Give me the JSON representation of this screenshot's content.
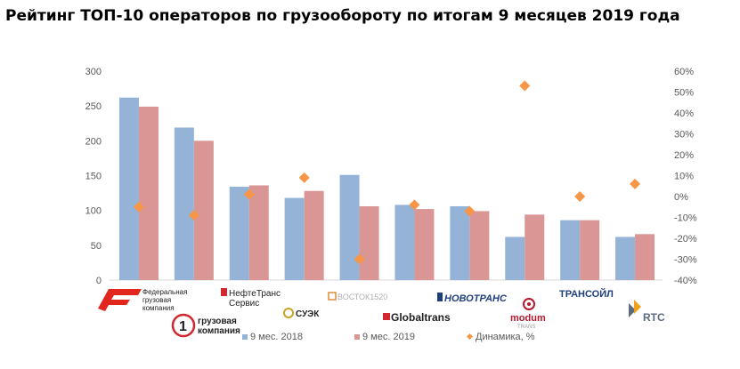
{
  "chart_data": {
    "type": "bar",
    "title": "Рейтинг ТОП-10 операторов по грузообороту по итогам 9 месяцев 2019 года",
    "categories": [
      "ФГК",
      "НефтеТрансСервис",
      "СУЭК",
      "ВОСТОК1520",
      "Первая грузовая компания",
      "Globaltrans",
      "Новотранс",
      "Модум-Транс",
      "Трансойл",
      "RTC"
    ],
    "series": [
      {
        "name": "9 мес. 2018",
        "axis": "left",
        "kind": "bar",
        "color": "#95b3d7",
        "values": [
          262,
          219,
          134,
          118,
          151,
          108,
          106,
          62,
          86,
          62
        ]
      },
      {
        "name": "9 мес. 2019",
        "axis": "left",
        "kind": "bar",
        "color": "#d99694",
        "values": [
          249,
          200,
          136,
          128,
          106,
          102,
          99,
          94,
          86,
          66
        ]
      },
      {
        "name": "Динамика, %",
        "axis": "right",
        "kind": "marker",
        "color": "#f79646",
        "values": [
          -5,
          -9,
          1,
          9,
          -30,
          -4,
          -7,
          53,
          0,
          6
        ]
      }
    ],
    "ylim_left": [
      0,
      300
    ],
    "yticks_left": [
      "0",
      "50",
      "100",
      "150",
      "200",
      "250",
      "300"
    ],
    "ylim_right": [
      -40,
      60
    ],
    "yticks_right": [
      "-40%",
      "-30%",
      "-20%",
      "-10%",
      "0%",
      "10%",
      "20%",
      "30%",
      "40%",
      "50%",
      "60%"
    ],
    "grid": false,
    "legend_position": "bottom"
  },
  "logos": {
    "fgk_line1": "Федеральная",
    "fgk_line2": "грузовая",
    "fgk_line3": "компания",
    "nts_line1": "НефтеТранс",
    "nts_line2": "Сервис",
    "suek": "СУЭК",
    "vostok": "ВОСТОК1520",
    "pgk_digit": "1",
    "pgk_line1": "грузовая",
    "pgk_line2": "компания",
    "globaltrans": "Globaltrans",
    "novotrans": "НОВОТРАНС",
    "modum": "modum",
    "modum_sub": "TRANS",
    "transoil": "ТРАНСОЙЛ",
    "rtc": "RTC"
  }
}
